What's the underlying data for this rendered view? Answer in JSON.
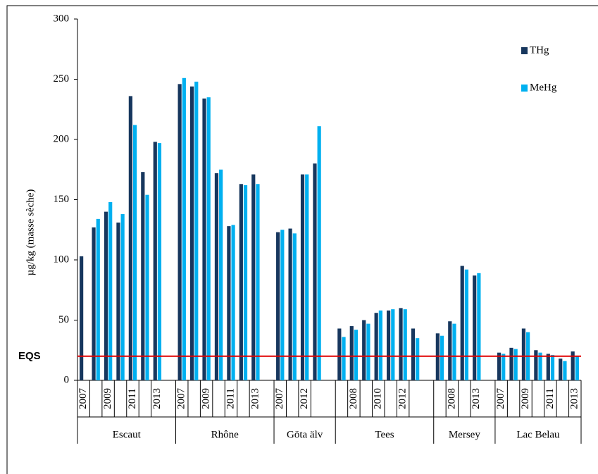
{
  "chart_data": {
    "type": "grouped_bar",
    "ylabel": "µg/kg (masse sèche)",
    "ylim": [
      0,
      300
    ],
    "yticks": [
      0,
      50,
      100,
      150,
      200,
      250,
      300
    ],
    "series": [
      {
        "name": "THg",
        "color": "#17375e"
      },
      {
        "name": "MeHg",
        "color": "#00b0f0"
      }
    ],
    "reference_line": {
      "label": "EQS",
      "value": 20,
      "color": "#e00000"
    },
    "groups": [
      {
        "name": "Escaut",
        "categories": [
          "2007",
          null,
          "2009",
          null,
          "2011",
          null,
          "2013"
        ],
        "values": [
          [
            103,
            127,
            140,
            131,
            236,
            173,
            198
          ],
          [
            null,
            134,
            148,
            138,
            212,
            154,
            197
          ]
        ]
      },
      {
        "name": "Rhône",
        "categories": [
          "2007",
          null,
          "2009",
          null,
          "2011",
          null,
          "2013"
        ],
        "values": [
          [
            246,
            244,
            234,
            172,
            128,
            163,
            171
          ],
          [
            251,
            248,
            235,
            175,
            129,
            162,
            163
          ]
        ]
      },
      {
        "name": "Göta älv",
        "categories": [
          "2007",
          null,
          "2012",
          null
        ],
        "values": [
          [
            123,
            126,
            171,
            180
          ],
          [
            125,
            122,
            171,
            211
          ]
        ]
      },
      {
        "name": "Tees",
        "categories": [
          null,
          "2008",
          null,
          "2010",
          null,
          "2012",
          null
        ],
        "values": [
          [
            43,
            45,
            50,
            56,
            58,
            60,
            43
          ],
          [
            36,
            42,
            47,
            58,
            59,
            59,
            35
          ]
        ]
      },
      {
        "name": "Mersey",
        "categories": [
          null,
          "2008",
          null,
          "2013"
        ],
        "values": [
          [
            39,
            49,
            95,
            87
          ],
          [
            37,
            47,
            92,
            89
          ]
        ]
      },
      {
        "name": "Lac Belau",
        "categories": [
          "2007",
          null,
          "2009",
          null,
          "2011",
          null,
          "2013"
        ],
        "values": [
          [
            23,
            27,
            43,
            25,
            22,
            18,
            24
          ],
          [
            22,
            26,
            40,
            23,
            21,
            16,
            20
          ]
        ]
      }
    ]
  }
}
